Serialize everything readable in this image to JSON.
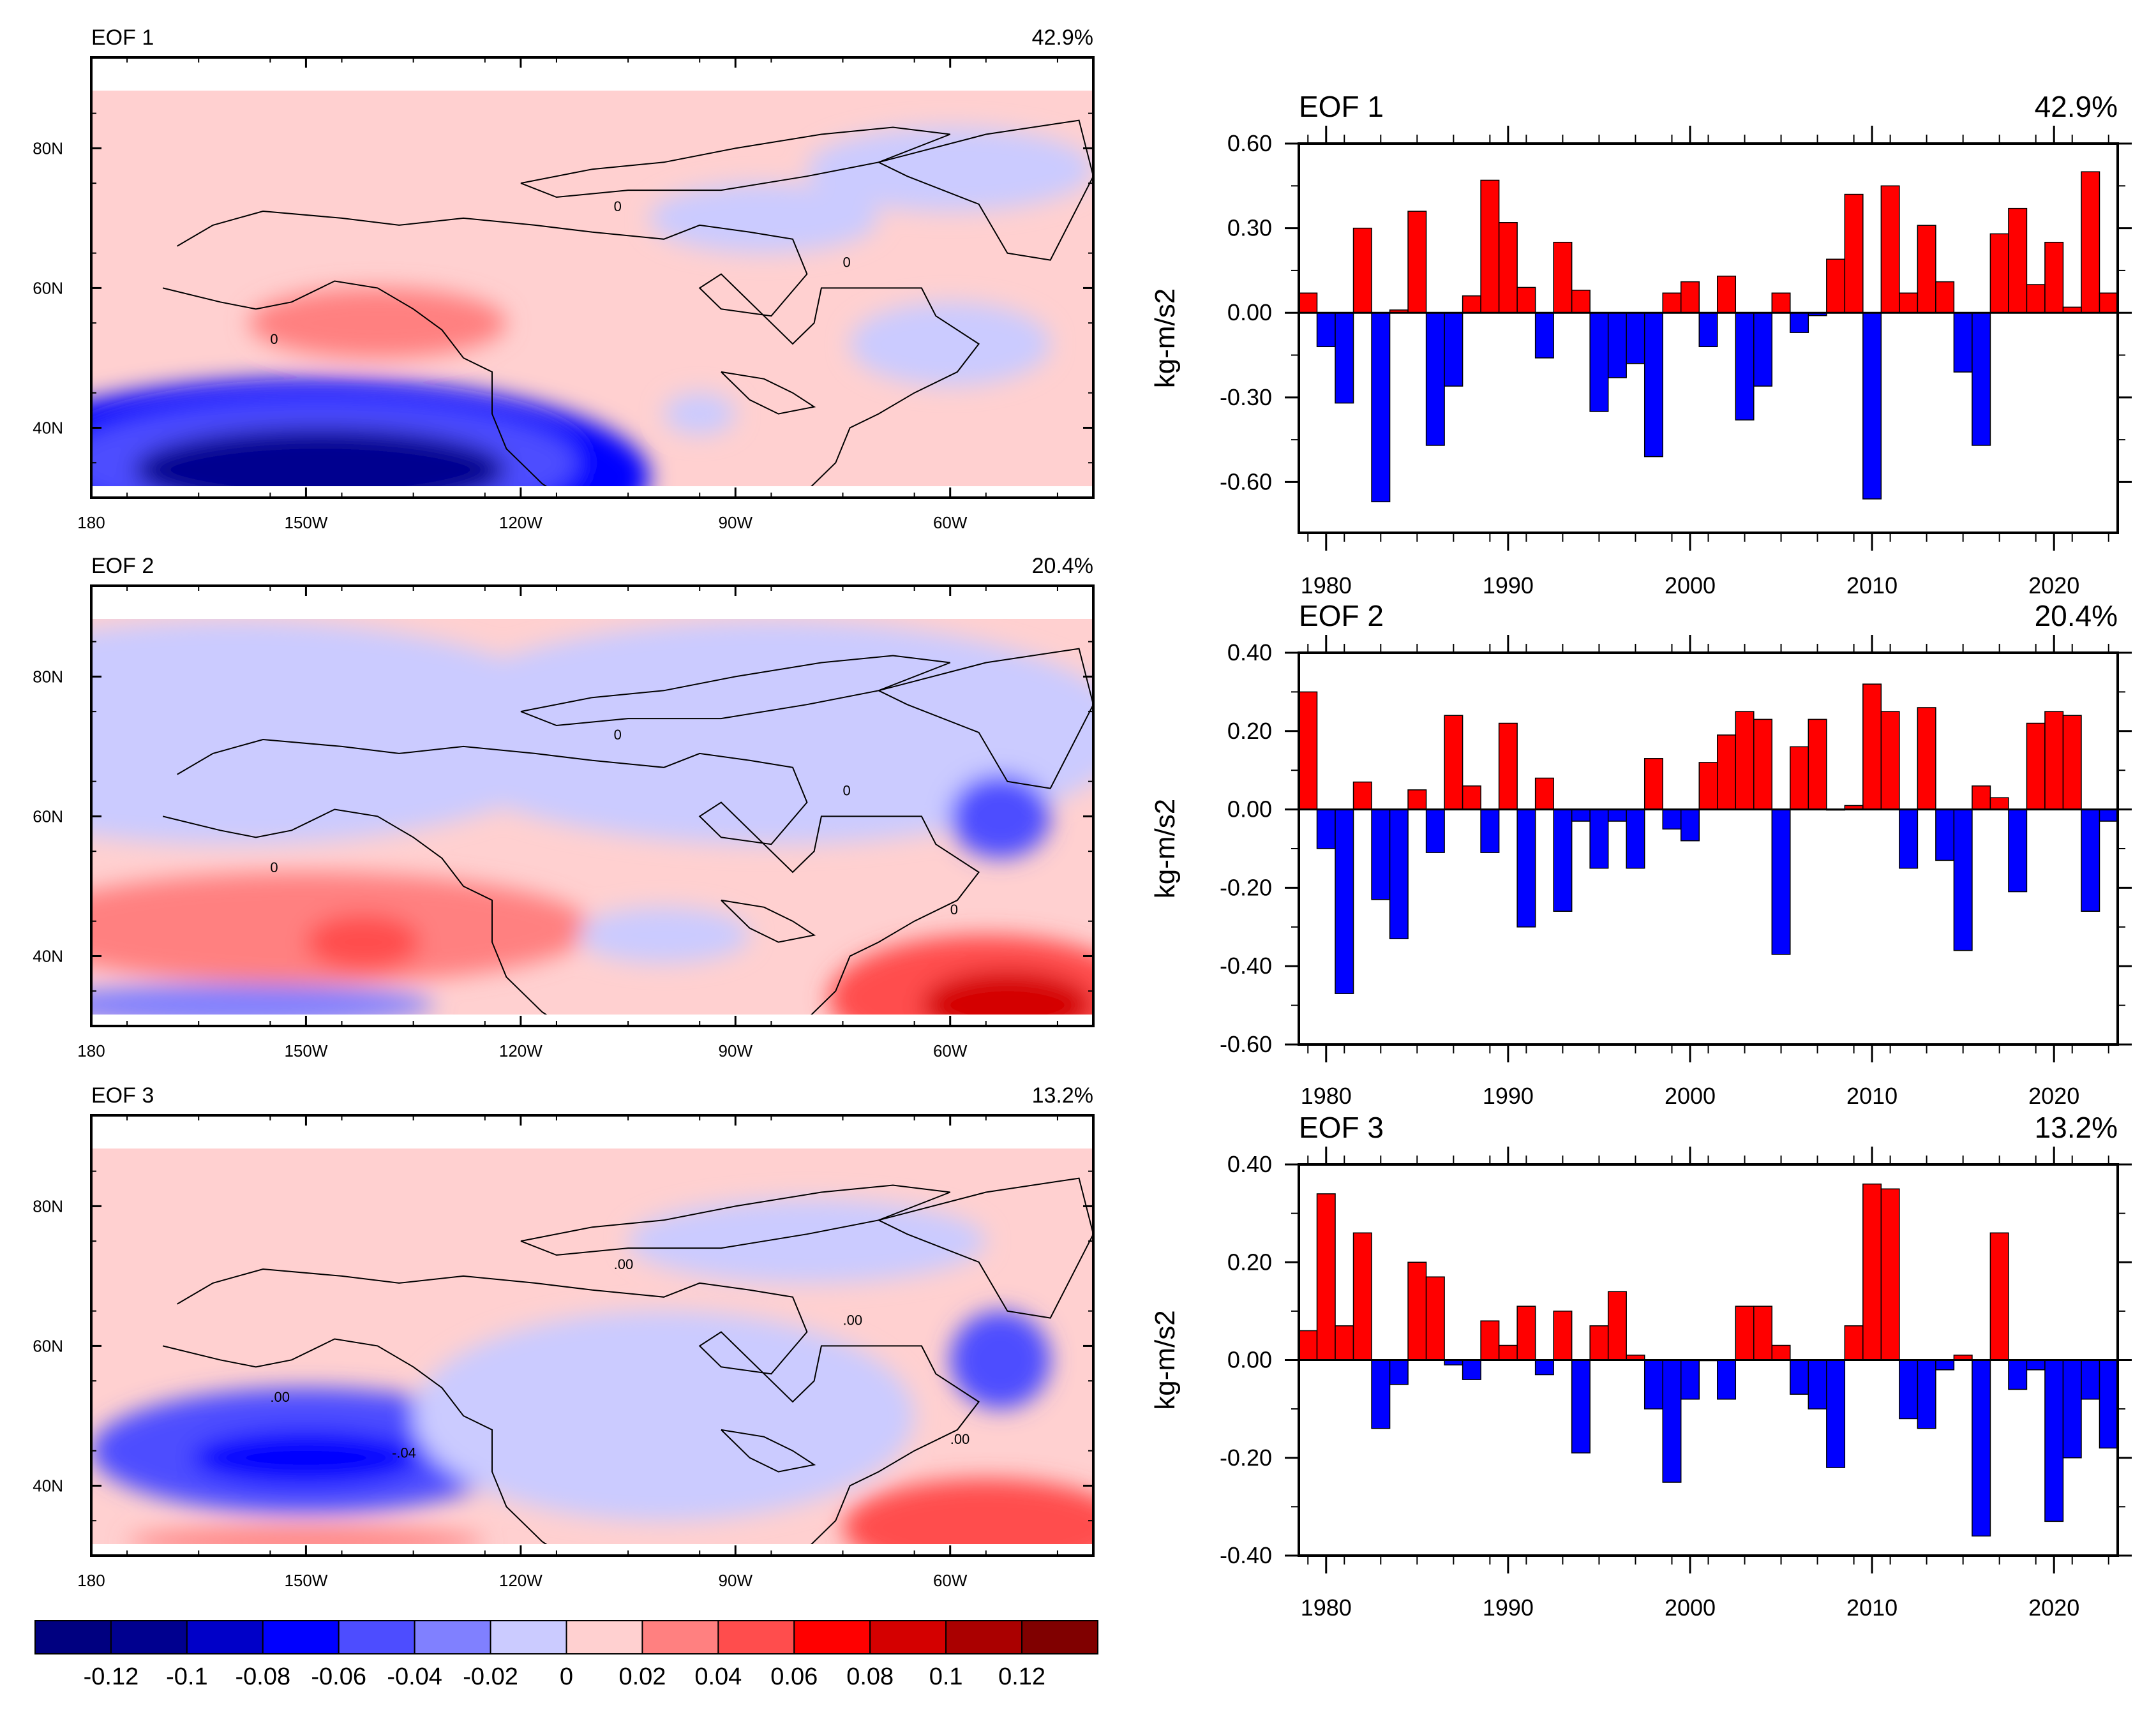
{
  "colors": {
    "positive_bar": "#ff0000",
    "negative_bar": "#0000ff",
    "coast": "#000000",
    "scale": [
      "#000080",
      "#00008f",
      "#0000c8",
      "#0000ff",
      "#4d4dff",
      "#8080ff",
      "#cbcbff",
      "#ffd0d0",
      "#ff8080",
      "#ff4d4d",
      "#ff0000",
      "#d40000",
      "#aa0000",
      "#800000"
    ]
  },
  "maps": [
    {
      "title": "EOF 1",
      "variance": "42.9%",
      "lon_ticks": [
        "180",
        "150W",
        "120W",
        "90W",
        "60W"
      ],
      "lat_ticks": [
        "80N",
        "60N",
        "40N"
      ],
      "contour_labels": [
        "0",
        "0",
        "0"
      ],
      "features": [
        {
          "lon": -150,
          "lat": 33,
          "rx": 48,
          "ry": 14,
          "v": -0.06
        },
        {
          "lon": -148,
          "lat": 35,
          "rx": 36,
          "ry": 9,
          "v": -0.04
        },
        {
          "lon": -148,
          "lat": 34,
          "rx": 26,
          "ry": 6,
          "v": -0.1
        },
        {
          "lon": -140,
          "lat": 55,
          "rx": 18,
          "ry": 5,
          "v": 0.03
        },
        {
          "lon": -86,
          "lat": 70,
          "rx": 16,
          "ry": 5,
          "v": -0.01
        },
        {
          "lon": -60,
          "lat": 77,
          "rx": 20,
          "ry": 6,
          "v": -0.01
        },
        {
          "lon": -60,
          "lat": 52,
          "rx": 14,
          "ry": 6,
          "v": -0.01
        },
        {
          "lon": -95,
          "lat": 42,
          "rx": 5,
          "ry": 3,
          "v": -0.01
        }
      ]
    },
    {
      "title": "EOF 2",
      "variance": "20.4%",
      "lon_ticks": [
        "180",
        "150W",
        "120W",
        "90W",
        "60W"
      ],
      "lat_ticks": [
        "80N",
        "60N",
        "40N"
      ],
      "contour_labels": [
        "0",
        "0",
        "0",
        "0"
      ],
      "features": [
        {
          "lon": -160,
          "lat": 72,
          "rx": 50,
          "ry": 16,
          "v": -0.01
        },
        {
          "lon": -85,
          "lat": 72,
          "rx": 50,
          "ry": 16,
          "v": -0.01
        },
        {
          "lon": -150,
          "lat": 44,
          "rx": 40,
          "ry": 8,
          "v": 0.03
        },
        {
          "lon": -142,
          "lat": 42,
          "rx": 8,
          "ry": 4,
          "v": 0.05
        },
        {
          "lon": -160,
          "lat": 33,
          "rx": 28,
          "ry": 3,
          "v": -0.03
        },
        {
          "lon": -55,
          "lat": 34,
          "rx": 22,
          "ry": 9,
          "v": 0.06
        },
        {
          "lon": -52,
          "lat": 33,
          "rx": 12,
          "ry": 5,
          "v": 0.1
        },
        {
          "lon": -53,
          "lat": 60,
          "rx": 7,
          "ry": 6,
          "v": -0.04
        },
        {
          "lon": -100,
          "lat": 43,
          "rx": 12,
          "ry": 4,
          "v": -0.01
        }
      ]
    },
    {
      "title": "EOF 3",
      "variance": "13.2%",
      "lon_ticks": [
        "180",
        "150W",
        "120W",
        "90W",
        "60W"
      ],
      "lat_ticks": [
        "80N",
        "60N",
        "40N"
      ],
      "contour_labels": [
        ".00",
        ".00",
        ".00",
        ".00",
        "-.04"
      ],
      "features": [
        {
          "lon": -150,
          "lat": 45,
          "rx": 30,
          "ry": 9,
          "v": -0.04
        },
        {
          "lon": -150,
          "lat": 44,
          "rx": 16,
          "ry": 4,
          "v": -0.06
        },
        {
          "lon": -100,
          "lat": 50,
          "rx": 35,
          "ry": 15,
          "v": -0.01
        },
        {
          "lon": -80,
          "lat": 75,
          "rx": 25,
          "ry": 6,
          "v": -0.01
        },
        {
          "lon": -53,
          "lat": 58,
          "rx": 7,
          "ry": 7,
          "v": -0.04
        },
        {
          "lon": -55,
          "lat": 34,
          "rx": 20,
          "ry": 7,
          "v": 0.05
        },
        {
          "lon": -150,
          "lat": 32,
          "rx": 25,
          "ry": 2,
          "v": 0.04
        }
      ]
    }
  ],
  "colorbar": {
    "labels": [
      "-0.12",
      "-0.1",
      "-0.08",
      "-0.06",
      "-0.04",
      "-0.02",
      "0",
      "0.02",
      "0.04",
      "0.06",
      "0.08",
      "0.1",
      "0.12"
    ]
  },
  "chart_data": [
    {
      "type": "bar",
      "title": "EOF 1",
      "variance": "42.9%",
      "ylabel": "kg-m/s2",
      "ylim": [
        -0.78,
        0.6
      ],
      "yticks": [
        0.6,
        0.3,
        0.0,
        -0.3,
        -0.6
      ],
      "ytick_labels": [
        "0.60",
        "0.30",
        "0.00",
        "-0.30",
        "-0.60"
      ],
      "xlim": [
        1978.5,
        2023.5
      ],
      "xticks": [
        1980,
        1990,
        2000,
        2010,
        2020
      ],
      "xtick_labels": [
        "1980",
        "1990",
        "2000",
        "2010",
        "2020"
      ],
      "years": [
        1979,
        1980,
        1981,
        1982,
        1983,
        1984,
        1985,
        1986,
        1987,
        1988,
        1989,
        1990,
        1991,
        1992,
        1993,
        1994,
        1995,
        1996,
        1997,
        1998,
        1999,
        2000,
        2001,
        2002,
        2003,
        2004,
        2005,
        2006,
        2007,
        2008,
        2009,
        2010,
        2011,
        2012,
        2013,
        2014,
        2015,
        2016,
        2017,
        2018,
        2019,
        2020,
        2021,
        2022,
        2023
      ],
      "values": [
        0.07,
        -0.12,
        -0.32,
        0.3,
        -0.67,
        0.01,
        0.36,
        -0.47,
        -0.26,
        0.06,
        0.47,
        0.32,
        0.09,
        -0.16,
        0.25,
        0.08,
        -0.35,
        -0.23,
        -0.18,
        -0.51,
        0.07,
        0.11,
        -0.12,
        0.13,
        -0.38,
        -0.26,
        0.07,
        -0.07,
        -0.01,
        0.19,
        0.42,
        -0.66,
        0.45,
        0.07,
        0.31,
        0.11,
        -0.21,
        -0.47,
        0.28,
        0.37,
        0.1,
        0.25,
        0.02,
        0.5,
        0.07
      ]
    },
    {
      "type": "bar",
      "title": "EOF 2",
      "variance": "20.4%",
      "ylabel": "kg-m/s2",
      "ylim": [
        -0.6,
        0.4
      ],
      "yticks": [
        0.4,
        0.2,
        0.0,
        -0.2,
        -0.4,
        -0.6
      ],
      "ytick_labels": [
        "0.40",
        "0.20",
        "0.00",
        "-0.20",
        "-0.40",
        "-0.60"
      ],
      "xlim": [
        1978.5,
        2023.5
      ],
      "xticks": [
        1980,
        1990,
        2000,
        2010,
        2020
      ],
      "xtick_labels": [
        "1980",
        "1990",
        "2000",
        "2010",
        "2020"
      ],
      "years": [
        1979,
        1980,
        1981,
        1982,
        1983,
        1984,
        1985,
        1986,
        1987,
        1988,
        1989,
        1990,
        1991,
        1992,
        1993,
        1994,
        1995,
        1996,
        1997,
        1998,
        1999,
        2000,
        2001,
        2002,
        2003,
        2004,
        2005,
        2006,
        2007,
        2008,
        2009,
        2010,
        2011,
        2012,
        2013,
        2014,
        2015,
        2016,
        2017,
        2018,
        2019,
        2020,
        2021,
        2022,
        2023
      ],
      "values": [
        0.3,
        -0.1,
        -0.47,
        0.07,
        -0.23,
        -0.33,
        0.05,
        -0.11,
        0.24,
        0.06,
        -0.11,
        0.22,
        -0.3,
        0.08,
        -0.26,
        -0.03,
        -0.15,
        -0.03,
        -0.15,
        0.13,
        -0.05,
        -0.08,
        0.12,
        0.19,
        0.25,
        0.23,
        -0.37,
        0.16,
        0.23,
        0.0,
        0.01,
        0.32,
        0.25,
        -0.15,
        0.26,
        -0.13,
        -0.36,
        0.06,
        0.03,
        -0.21,
        0.22,
        0.25,
        0.24,
        -0.26,
        -0.03
      ]
    },
    {
      "type": "bar",
      "title": "EOF 3",
      "variance": "13.2%",
      "ylabel": "kg-m/s2",
      "ylim": [
        -0.4,
        0.4
      ],
      "yticks": [
        0.4,
        0.2,
        0.0,
        -0.2,
        -0.4
      ],
      "ytick_labels": [
        "0.40",
        "0.20",
        "0.00",
        "-0.20",
        "-0.40"
      ],
      "xlim": [
        1978.5,
        2023.5
      ],
      "xticks": [
        1980,
        1990,
        2000,
        2010,
        2020
      ],
      "xtick_labels": [
        "1980",
        "1990",
        "2000",
        "2010",
        "2020"
      ],
      "years": [
        1979,
        1980,
        1981,
        1982,
        1983,
        1984,
        1985,
        1986,
        1987,
        1988,
        1989,
        1990,
        1991,
        1992,
        1993,
        1994,
        1995,
        1996,
        1997,
        1998,
        1999,
        2000,
        2001,
        2002,
        2003,
        2004,
        2005,
        2006,
        2007,
        2008,
        2009,
        2010,
        2011,
        2012,
        2013,
        2014,
        2015,
        2016,
        2017,
        2018,
        2019,
        2020,
        2021,
        2022,
        2023
      ],
      "values": [
        0.06,
        0.34,
        0.07,
        0.26,
        -0.14,
        -0.05,
        0.2,
        0.17,
        -0.01,
        -0.04,
        0.08,
        0.03,
        0.11,
        -0.03,
        0.1,
        -0.19,
        0.07,
        0.14,
        0.01,
        -0.1,
        -0.25,
        -0.08,
        0.0,
        -0.08,
        0.11,
        0.11,
        0.03,
        -0.07,
        -0.1,
        -0.22,
        0.07,
        0.36,
        0.35,
        -0.12,
        -0.14,
        -0.02,
        0.01,
        -0.36,
        0.26,
        -0.06,
        -0.02,
        -0.33,
        -0.2,
        -0.08,
        -0.18
      ]
    }
  ]
}
